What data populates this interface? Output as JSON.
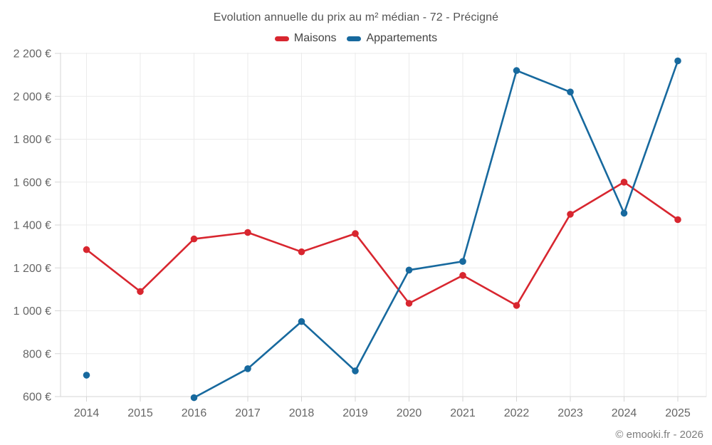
{
  "chart_data": {
    "type": "line",
    "title": "Evolution annuelle du prix au m² médian - 72 - Précigné",
    "categories": [
      "2014",
      "2015",
      "2016",
      "2017",
      "2018",
      "2019",
      "2020",
      "2021",
      "2022",
      "2023",
      "2024",
      "2025"
    ],
    "series": [
      {
        "name": "Maisons",
        "color": "#d8262f",
        "values": [
          1285,
          1090,
          1335,
          1365,
          1275,
          1360,
          1035,
          1165,
          1025,
          1450,
          1600,
          1425
        ]
      },
      {
        "name": "Appartements",
        "color": "#17699e",
        "values": [
          700,
          null,
          595,
          730,
          950,
          720,
          1190,
          1230,
          2120,
          2020,
          1455,
          2165
        ]
      }
    ],
    "ylim": [
      600,
      2200
    ],
    "y_step": 200,
    "y_tick_labels": [
      "600 €",
      "800 €",
      "1 000 €",
      "1 200 €",
      "1 400 €",
      "1 600 €",
      "1 800 €",
      "2 000 €",
      "2 200 €"
    ],
    "grid": true,
    "legend_position": "top",
    "colors": {
      "grid": "#ebebeb",
      "axis": "#d6d6d6",
      "tick_label": "#666666",
      "title": "#545454",
      "legend_text": "#434343",
      "footer_text": "#7d7d7d"
    }
  },
  "footer": {
    "text": "© emooki.fr - 2026"
  }
}
